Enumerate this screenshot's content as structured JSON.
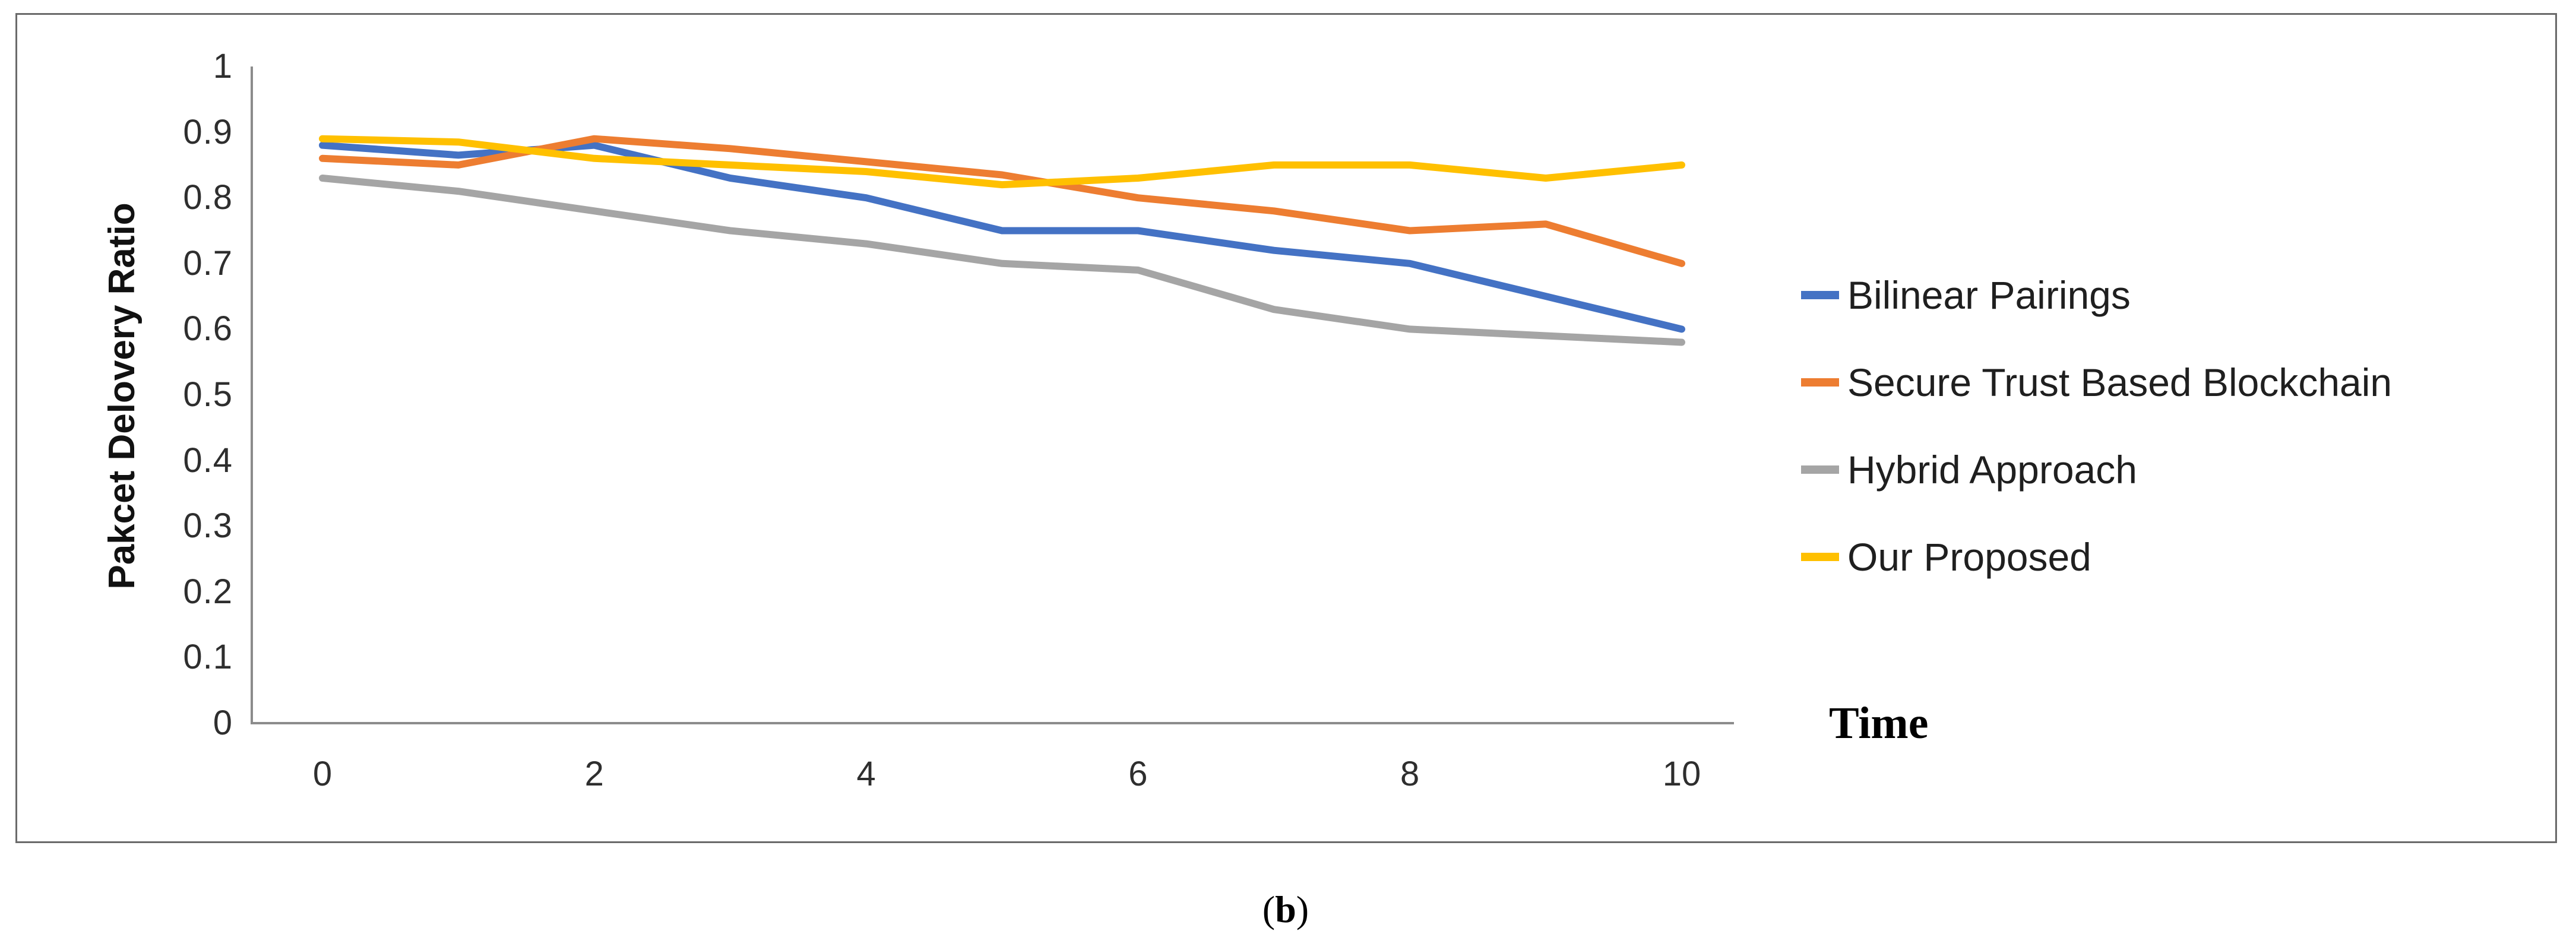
{
  "figure": {
    "caption_open": "(",
    "caption_letter": "b",
    "caption_close": ")"
  },
  "chart_data": {
    "type": "line",
    "title": "",
    "xlabel": "Time",
    "ylabel": "Pakcet Delovery Ratio",
    "x": [
      0,
      1,
      2,
      3,
      4,
      5,
      6,
      7,
      8,
      9,
      10
    ],
    "x_tick_labels": [
      "0",
      "2",
      "4",
      "6",
      "8",
      "10"
    ],
    "y_tick_labels": [
      "0",
      "0.1",
      "0.2",
      "0.3",
      "0.4",
      "0.5",
      "0.6",
      "0.7",
      "0.8",
      "0.9",
      "1"
    ],
    "ylim": [
      0,
      1
    ],
    "grid": false,
    "legend_position": "right",
    "axis_color": "#8c8c8c",
    "series": [
      {
        "name": "Bilinear Pairings",
        "color": "#4472C4",
        "values": [
          0.88,
          0.865,
          0.88,
          0.83,
          0.8,
          0.75,
          0.75,
          0.72,
          0.7,
          0.65,
          0.6
        ]
      },
      {
        "name": "Secure Trust Based Blockchain",
        "color": "#ED7D31",
        "values": [
          0.86,
          0.85,
          0.89,
          0.875,
          0.855,
          0.835,
          0.8,
          0.78,
          0.75,
          0.76,
          0.7
        ]
      },
      {
        "name": "Hybrid Approach",
        "color": "#A5A5A5",
        "values": [
          0.83,
          0.81,
          0.78,
          0.75,
          0.73,
          0.7,
          0.69,
          0.63,
          0.6,
          0.59,
          0.58
        ]
      },
      {
        "name": "Our Proposed",
        "color": "#FFC000",
        "values": [
          0.89,
          0.885,
          0.86,
          0.85,
          0.84,
          0.82,
          0.83,
          0.85,
          0.85,
          0.83,
          0.85
        ]
      }
    ]
  }
}
